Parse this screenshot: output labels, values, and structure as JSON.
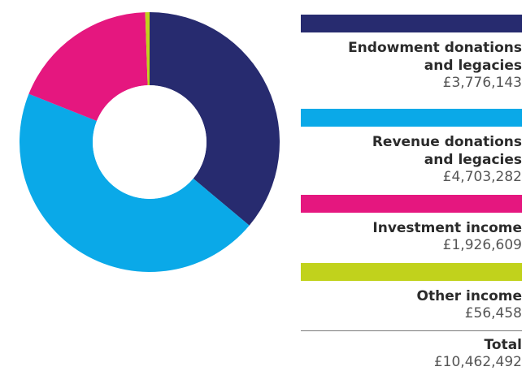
{
  "chart_data": {
    "type": "pie",
    "categories": [
      "Endowment donations and legacies",
      "Revenue donations and legacies",
      "Investment income",
      "Other income"
    ],
    "values": [
      3776143,
      4703282,
      1926609,
      56458
    ],
    "value_labels": [
      "£3,776,143",
      "£4,703,282",
      "£1,926,609",
      "£56,458"
    ],
    "colors": [
      "#272b6f",
      "#0aa9e8",
      "#e5177f",
      "#c1d21c"
    ],
    "legend_placement": "right",
    "total_label": "Total",
    "total_value": "£10,462,492"
  },
  "legend": {
    "items": [
      {
        "label_line1": "Endowment donations",
        "label_line2": "and legacies",
        "value": "£3,776,143",
        "color": "#272b6f"
      },
      {
        "label_line1": "Revenue donations",
        "label_line2": "and legacies",
        "value": "£4,703,282",
        "color": "#0aa9e8"
      },
      {
        "label_line1": "Investment income",
        "label_line2": "",
        "value": "£1,926,609",
        "color": "#e5177f"
      },
      {
        "label_line1": "Other income",
        "label_line2": "",
        "value": "£56,458",
        "color": "#c1d21c"
      }
    ],
    "total_label": "Total",
    "total_value": "£10,462,492"
  }
}
